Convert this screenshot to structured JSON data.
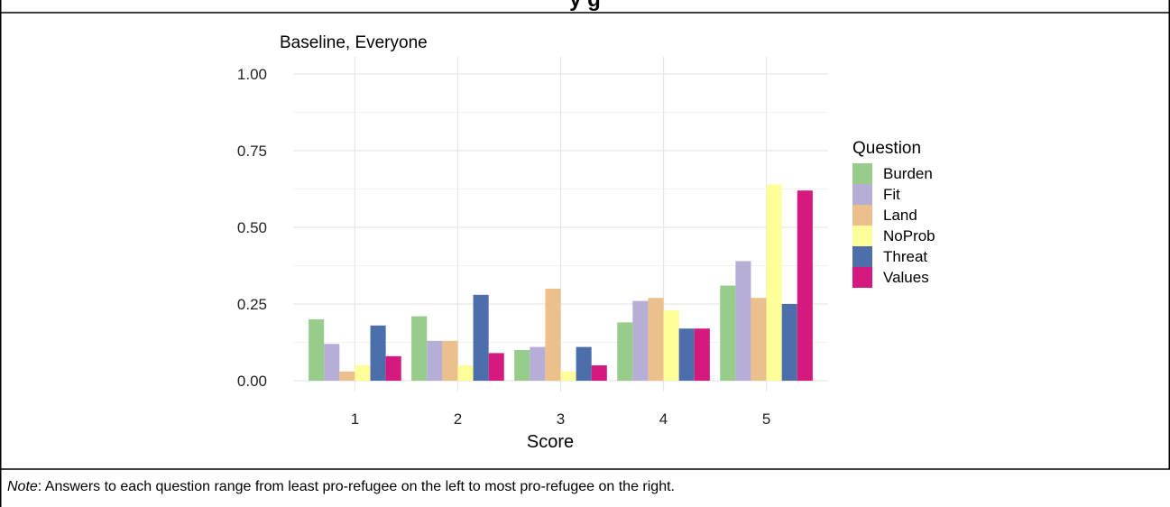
{
  "figure": {
    "top_title_fragment": "y                                g",
    "note_label": "Note",
    "note_text": ": Answers to each question range from least pro-refugee on the left to most pro-refugee on the right."
  },
  "chart_data": {
    "type": "bar",
    "title": "Baseline, Everyone",
    "xlabel": "Score",
    "ylabel": "",
    "categories": [
      "1",
      "2",
      "3",
      "4",
      "5"
    ],
    "ylim": [
      0,
      1
    ],
    "yticks": [
      "0.00",
      "0.25",
      "0.50",
      "0.75",
      "1.00"
    ],
    "grid": true,
    "legend_title": "Question",
    "legend_position": "right",
    "series": [
      {
        "name": "Burden",
        "color": "#98cc8a",
        "values": [
          0.2,
          0.21,
          0.1,
          0.19,
          0.31
        ]
      },
      {
        "name": "Fit",
        "color": "#b6aed6",
        "values": [
          0.12,
          0.13,
          0.11,
          0.26,
          0.39
        ]
      },
      {
        "name": "Land",
        "color": "#ecc08c",
        "values": [
          0.03,
          0.13,
          0.3,
          0.27,
          0.27
        ]
      },
      {
        "name": "NoProb",
        "color": "#ffff99",
        "values": [
          0.05,
          0.05,
          0.03,
          0.23,
          0.64
        ]
      },
      {
        "name": "Threat",
        "color": "#4c6eab",
        "values": [
          0.18,
          0.28,
          0.11,
          0.17,
          0.25
        ]
      },
      {
        "name": "Values",
        "color": "#d6197e",
        "values": [
          0.08,
          0.09,
          0.05,
          0.17,
          0.62
        ]
      }
    ]
  }
}
